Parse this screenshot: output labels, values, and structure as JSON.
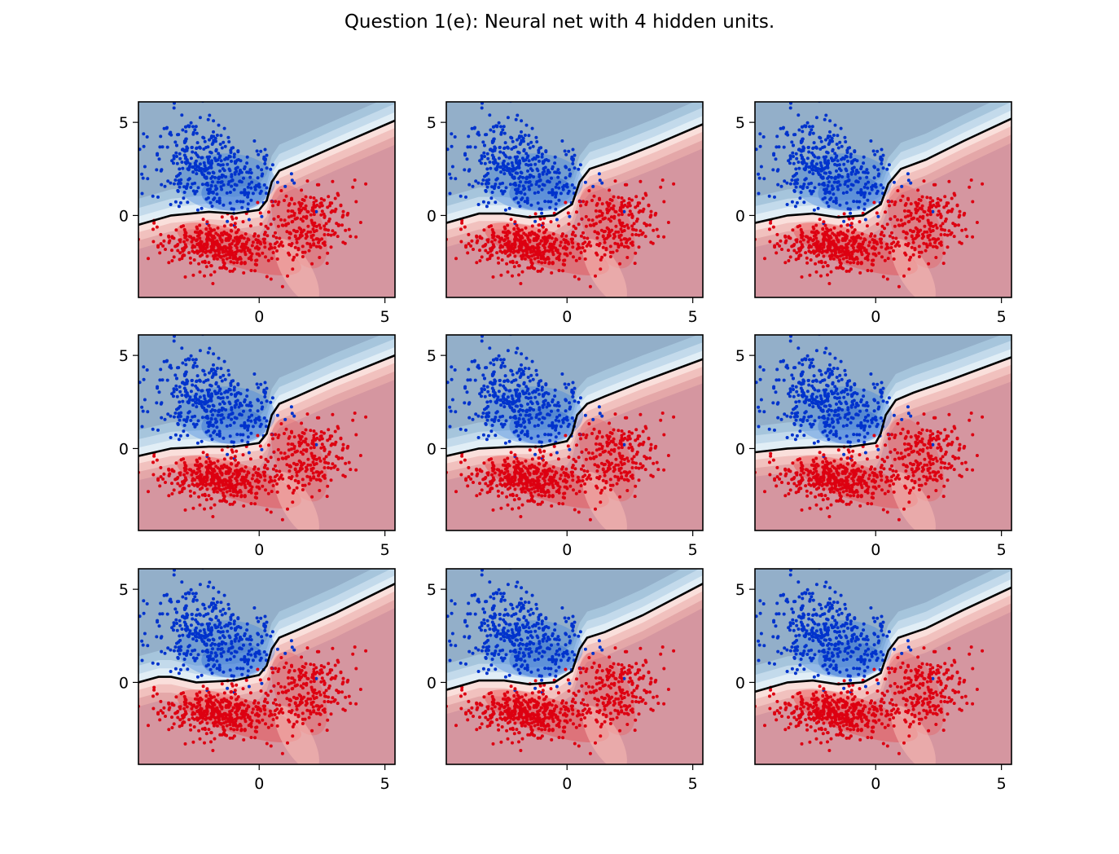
{
  "figure": {
    "title": "Question 1(e): Neural net with 4 hidden units."
  },
  "chart_data": {
    "type": "scatter",
    "layout": "3x3 grid of identical-axes subplots",
    "xlim": [
      -4.8,
      5.4
    ],
    "ylim": [
      -4.4,
      6.1
    ],
    "xticks": [
      0,
      5
    ],
    "yticks": [
      0,
      5
    ],
    "colors": {
      "class_blue": "#0033cc",
      "class_red": "#dd0011",
      "region_blue": "#93afc9",
      "region_red": "#d596a0",
      "boundary": "#000000"
    },
    "point_clusters": [
      {
        "class": "blue",
        "center": [
          -2.0,
          2.5
        ],
        "spread": [
          1.2,
          1.2
        ],
        "count": 420
      },
      {
        "class": "red",
        "center": [
          -1.5,
          -1.7
        ],
        "spread": [
          1.2,
          0.7
        ],
        "count": 420
      },
      {
        "class": "red",
        "center": [
          1.8,
          -0.3
        ],
        "spread": [
          0.9,
          1.1
        ],
        "count": 230
      }
    ],
    "panels": [
      {
        "boundary": [
          [
            -4.8,
            -0.5
          ],
          [
            -3.5,
            0.0
          ],
          [
            -2.0,
            0.2
          ],
          [
            -1.0,
            0.1
          ],
          [
            0.0,
            0.3
          ],
          [
            0.3,
            0.8
          ],
          [
            0.5,
            1.8
          ],
          [
            0.8,
            2.4
          ],
          [
            1.5,
            2.8
          ],
          [
            3.0,
            3.7
          ],
          [
            5.4,
            5.1
          ]
        ]
      },
      {
        "boundary": [
          [
            -4.8,
            -0.4
          ],
          [
            -3.5,
            0.1
          ],
          [
            -2.5,
            0.1
          ],
          [
            -1.5,
            -0.1
          ],
          [
            -0.5,
            0.0
          ],
          [
            0.2,
            0.6
          ],
          [
            0.5,
            1.8
          ],
          [
            0.9,
            2.5
          ],
          [
            2.0,
            3.0
          ],
          [
            3.5,
            3.8
          ],
          [
            5.4,
            4.9
          ]
        ]
      },
      {
        "boundary": [
          [
            -4.8,
            -0.4
          ],
          [
            -3.5,
            0.0
          ],
          [
            -2.5,
            0.1
          ],
          [
            -1.5,
            -0.1
          ],
          [
            -0.5,
            0.0
          ],
          [
            0.2,
            0.6
          ],
          [
            0.5,
            1.7
          ],
          [
            1.0,
            2.5
          ],
          [
            2.0,
            3.0
          ],
          [
            3.5,
            4.0
          ],
          [
            5.4,
            5.2
          ]
        ]
      },
      {
        "boundary": [
          [
            -4.8,
            -0.4
          ],
          [
            -3.5,
            0.0
          ],
          [
            -2.0,
            0.1
          ],
          [
            -1.0,
            0.1
          ],
          [
            0.0,
            0.3
          ],
          [
            0.3,
            0.8
          ],
          [
            0.5,
            1.8
          ],
          [
            0.8,
            2.4
          ],
          [
            1.5,
            2.8
          ],
          [
            3.0,
            3.7
          ],
          [
            5.4,
            5.0
          ]
        ]
      },
      {
        "boundary": [
          [
            -4.8,
            -0.4
          ],
          [
            -3.5,
            0.0
          ],
          [
            -2.0,
            0.1
          ],
          [
            -1.0,
            0.1
          ],
          [
            0.0,
            0.4
          ],
          [
            0.2,
            0.8
          ],
          [
            0.4,
            1.8
          ],
          [
            0.8,
            2.4
          ],
          [
            1.5,
            2.8
          ],
          [
            3.0,
            3.6
          ],
          [
            5.4,
            4.8
          ]
        ]
      },
      {
        "boundary": [
          [
            -4.8,
            -0.2
          ],
          [
            -3.5,
            0.0
          ],
          [
            -2.0,
            0.1
          ],
          [
            -1.0,
            0.1
          ],
          [
            0.0,
            0.3
          ],
          [
            0.2,
            0.8
          ],
          [
            0.4,
            1.8
          ],
          [
            0.8,
            2.6
          ],
          [
            1.5,
            3.0
          ],
          [
            3.0,
            3.7
          ],
          [
            5.4,
            4.9
          ]
        ]
      },
      {
        "boundary": [
          [
            -4.8,
            0.0
          ],
          [
            -4.0,
            0.3
          ],
          [
            -3.5,
            0.3
          ],
          [
            -2.5,
            0.0
          ],
          [
            -1.0,
            0.1
          ],
          [
            0.0,
            0.4
          ],
          [
            0.3,
            0.9
          ],
          [
            0.5,
            1.8
          ],
          [
            0.8,
            2.4
          ],
          [
            1.5,
            2.8
          ],
          [
            3.0,
            3.7
          ],
          [
            5.4,
            5.3
          ]
        ]
      },
      {
        "boundary": [
          [
            -4.8,
            -0.4
          ],
          [
            -3.5,
            0.1
          ],
          [
            -2.5,
            0.1
          ],
          [
            -1.5,
            -0.1
          ],
          [
            -0.5,
            0.0
          ],
          [
            0.2,
            0.6
          ],
          [
            0.5,
            1.8
          ],
          [
            0.8,
            2.4
          ],
          [
            1.5,
            2.7
          ],
          [
            3.0,
            3.6
          ],
          [
            5.4,
            5.3
          ]
        ]
      },
      {
        "boundary": [
          [
            -4.8,
            -0.5
          ],
          [
            -3.5,
            0.0
          ],
          [
            -2.5,
            0.1
          ],
          [
            -1.5,
            -0.1
          ],
          [
            -0.5,
            0.0
          ],
          [
            0.2,
            0.5
          ],
          [
            0.5,
            1.7
          ],
          [
            0.9,
            2.4
          ],
          [
            2.0,
            2.9
          ],
          [
            3.5,
            3.9
          ],
          [
            5.4,
            5.1
          ]
        ]
      }
    ]
  }
}
